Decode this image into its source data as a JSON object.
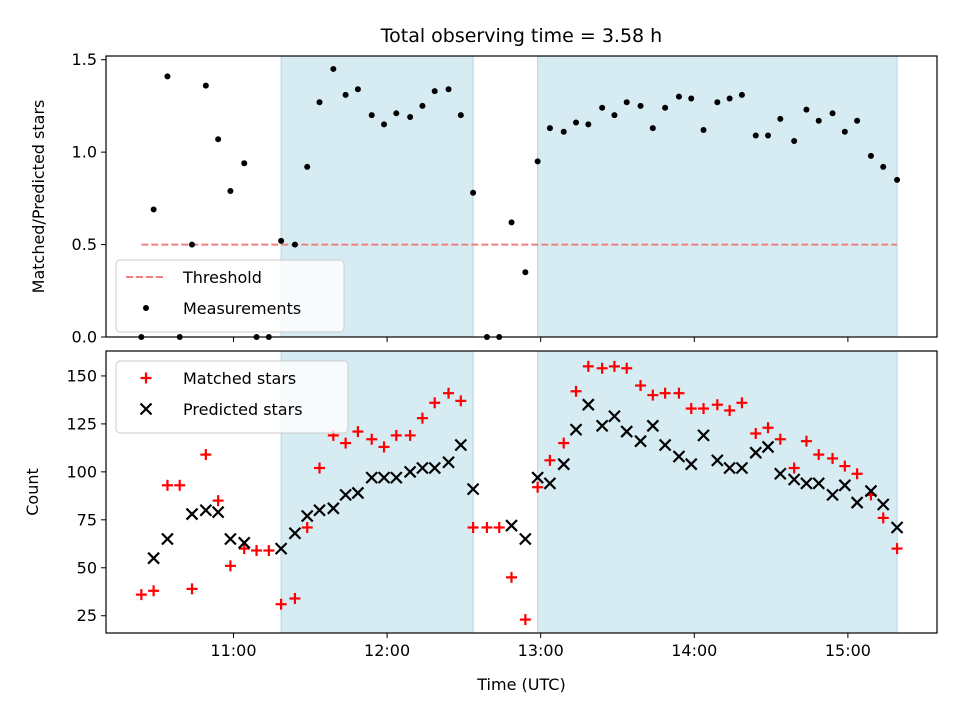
{
  "chart_data": [
    {
      "type": "scatter",
      "title": "Total observing time = 3.58 h",
      "xlabel": "",
      "ylabel": "Matched/Predicted stars",
      "x_unit": "hours (UTC)",
      "xlim": [
        10.17,
        15.58
      ],
      "ylim": [
        0,
        1.52
      ],
      "yticks": [
        0,
        0.5,
        1.0,
        1.5
      ],
      "ytick_labels": [
        "0.0",
        "0.5",
        "1.0",
        "1.5"
      ],
      "shaded_intervals": [
        [
          11.31,
          12.56
        ],
        [
          12.98,
          15.32
        ]
      ],
      "shade_color": "#add8e6",
      "legend_position": "lower-left",
      "series": [
        {
          "name": "Threshold",
          "kind": "dashed-line",
          "color": "#f08080",
          "x": [
            10.4,
            15.32
          ],
          "y": [
            0.5,
            0.5
          ]
        },
        {
          "name": "Measurements",
          "kind": "dot",
          "color": "#000000",
          "x": [
            10.4,
            10.48,
            10.57,
            10.65,
            10.73,
            10.82,
            10.9,
            10.98,
            11.07,
            11.15,
            11.23,
            11.31,
            11.4,
            11.48,
            11.56,
            11.65,
            11.73,
            11.81,
            11.9,
            11.98,
            12.06,
            12.15,
            12.23,
            12.31,
            12.4,
            12.48,
            12.56,
            12.65,
            12.73,
            12.81,
            12.9,
            12.98,
            13.06,
            13.15,
            13.23,
            13.31,
            13.4,
            13.48,
            13.56,
            13.65,
            13.73,
            13.81,
            13.9,
            13.98,
            14.06,
            14.15,
            14.23,
            14.31,
            14.4,
            14.48,
            14.56,
            14.65,
            14.73,
            14.81,
            14.9,
            14.98,
            15.06,
            15.15,
            15.23,
            15.32
          ],
          "y": [
            0,
            0.69,
            1.41,
            0,
            0.5,
            1.36,
            1.07,
            0.79,
            0.94,
            0,
            0,
            0.52,
            0.5,
            0.92,
            1.27,
            1.45,
            1.31,
            1.34,
            1.2,
            1.15,
            1.21,
            1.19,
            1.25,
            1.33,
            1.34,
            1.2,
            0.78,
            0,
            0,
            0.62,
            0.35,
            0.95,
            1.13,
            1.11,
            1.16,
            1.15,
            1.24,
            1.2,
            1.27,
            1.25,
            1.13,
            1.24,
            1.3,
            1.29,
            1.12,
            1.27,
            1.29,
            1.31,
            1.09,
            1.09,
            1.18,
            1.06,
            1.23,
            1.17,
            1.21,
            1.11,
            1.17,
            0.98,
            0.92,
            0.85
          ]
        }
      ]
    },
    {
      "type": "scatter",
      "title": "",
      "xlabel": "Time (UTC)",
      "ylabel": "Count",
      "x_unit": "hours (UTC)",
      "xlim": [
        10.17,
        15.58
      ],
      "xticks": [
        11,
        12,
        13,
        14,
        15
      ],
      "xtick_labels": [
        "11:00",
        "12:00",
        "13:00",
        "14:00",
        "15:00"
      ],
      "ylim": [
        16,
        163
      ],
      "yticks": [
        25,
        50,
        75,
        100,
        125,
        150
      ],
      "ytick_labels": [
        "25",
        "50",
        "75",
        "100",
        "125",
        "150"
      ],
      "shaded_intervals": [
        [
          11.31,
          12.56
        ],
        [
          12.98,
          15.32
        ]
      ],
      "shade_color": "#add8e6",
      "legend_position": "upper-left",
      "series": [
        {
          "name": "Matched stars",
          "kind": "plus",
          "color": "#ff0000",
          "x": [
            10.4,
            10.48,
            10.57,
            10.65,
            10.73,
            10.82,
            10.9,
            10.98,
            11.07,
            11.15,
            11.23,
            11.31,
            11.4,
            11.48,
            11.56,
            11.65,
            11.73,
            11.81,
            11.9,
            11.98,
            12.06,
            12.15,
            12.23,
            12.31,
            12.4,
            12.48,
            12.56,
            12.65,
            12.73,
            12.81,
            12.9,
            12.98,
            13.06,
            13.15,
            13.23,
            13.31,
            13.4,
            13.48,
            13.56,
            13.65,
            13.73,
            13.81,
            13.9,
            13.98,
            14.06,
            14.15,
            14.23,
            14.31,
            14.4,
            14.48,
            14.56,
            14.65,
            14.73,
            14.81,
            14.9,
            14.98,
            15.06,
            15.15,
            15.23,
            15.32
          ],
          "y": [
            36,
            38,
            93,
            93,
            39,
            109,
            85,
            51,
            60,
            59,
            59,
            31,
            34,
            71,
            102,
            119,
            115,
            121,
            117,
            113,
            119,
            119,
            128,
            136,
            141,
            137,
            71,
            71,
            71,
            45,
            23,
            92,
            106,
            115,
            142,
            155,
            154,
            155,
            154,
            145,
            140,
            141,
            141,
            133,
            133,
            135,
            132,
            136,
            120,
            123,
            117,
            102,
            116,
            109,
            107,
            103,
            99,
            88,
            76,
            60
          ]
        },
        {
          "name": "Predicted stars",
          "kind": "cross",
          "color": "#000000",
          "x": [
            10.48,
            10.57,
            10.73,
            10.82,
            10.9,
            10.98,
            11.07,
            11.31,
            11.4,
            11.48,
            11.56,
            11.65,
            11.73,
            11.81,
            11.9,
            11.98,
            12.06,
            12.15,
            12.23,
            12.31,
            12.4,
            12.48,
            12.56,
            12.81,
            12.9,
            12.98,
            13.06,
            13.15,
            13.23,
            13.31,
            13.4,
            13.48,
            13.56,
            13.65,
            13.73,
            13.81,
            13.9,
            13.98,
            14.06,
            14.15,
            14.23,
            14.31,
            14.4,
            14.48,
            14.56,
            14.65,
            14.73,
            14.81,
            14.9,
            14.98,
            15.06,
            15.15,
            15.23,
            15.32
          ],
          "y": [
            55,
            65,
            78,
            80,
            79,
            65,
            63,
            60,
            68,
            77,
            80,
            81,
            88,
            89,
            97,
            97,
            97,
            100,
            102,
            102,
            105,
            114,
            91,
            72,
            65,
            97,
            94,
            104,
            122,
            135,
            124,
            129,
            121,
            116,
            124,
            114,
            108,
            104,
            119,
            106,
            102,
            102,
            110,
            113,
            99,
            96,
            94,
            94,
            88,
            93,
            84,
            90,
            83,
            71
          ]
        }
      ]
    }
  ]
}
